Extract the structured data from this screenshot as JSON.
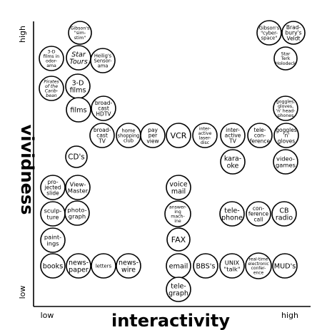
{
  "axes": {
    "x_title": "interactivity",
    "y_title": "vividness",
    "x_low": "low",
    "x_high": "high",
    "y_low": "low",
    "y_high": "high"
  },
  "nodes": [
    {
      "id": "gibsons-sim-stim",
      "lines": [
        "Gibson's",
        "\"sim-",
        "stim\""
      ]
    },
    {
      "id": "3d-films-in-odorama",
      "lines": [
        "3-D",
        "films in",
        "odor-",
        "ama"
      ]
    },
    {
      "id": "star-tours",
      "lines": [
        "Star",
        "Tours"
      ],
      "italic": true
    },
    {
      "id": "heiligs-sensorama",
      "lines": [
        "Heilig's",
        "Sensor-",
        "ama"
      ]
    },
    {
      "id": "pirates-of-the-caribbean",
      "lines": [
        "Pirates",
        "of the",
        "Carib-",
        "bean"
      ],
      "italic": true
    },
    {
      "id": "3d-films",
      "lines": [
        "3-D",
        "films"
      ]
    },
    {
      "id": "films",
      "lines": [
        "films"
      ]
    },
    {
      "id": "broadcast-hdtv",
      "lines": [
        "broad-",
        "cast",
        "HDTV"
      ]
    },
    {
      "id": "broadcast-tv",
      "lines": [
        "broad-",
        "cast",
        "TV"
      ]
    },
    {
      "id": "home-shopping-club",
      "lines": [
        "home",
        "shopping",
        "club"
      ]
    },
    {
      "id": "pay-per-view",
      "lines": [
        "pay",
        "per",
        "view"
      ]
    },
    {
      "id": "vcr",
      "lines": [
        "VCR"
      ]
    },
    {
      "id": "interactive-laser-disc",
      "lines": [
        "inter-",
        "active",
        "laser-",
        "disc"
      ]
    },
    {
      "id": "interactive-tv",
      "lines": [
        "inter-",
        "active",
        "TV"
      ]
    },
    {
      "id": "teleconference",
      "lines": [
        "tele-",
        "con-",
        "ference"
      ]
    },
    {
      "id": "goggles-gloves-2",
      "lines": [
        "goggles",
        "'n'",
        "gloves"
      ]
    },
    {
      "id": "goggles-gloves-headphones",
      "lines": [
        "goggles,",
        "gloves,",
        "'n' head-",
        "phones"
      ]
    },
    {
      "id": "gibsons-cyberspace",
      "lines": [
        "Gibson's",
        "\"cyber-",
        "space\""
      ]
    },
    {
      "id": "bradburys-veldt",
      "lines": [
        "Brad-",
        "bury's",
        "Veldt"
      ]
    },
    {
      "id": "star-trek-holodeck",
      "lines": [
        "Star",
        "Terk",
        "Holodeck"
      ]
    },
    {
      "id": "cds",
      "lines": [
        "CD's"
      ]
    },
    {
      "id": "karaoke",
      "lines": [
        "kara-",
        "oke"
      ]
    },
    {
      "id": "videogames",
      "lines": [
        "video-",
        "games"
      ]
    },
    {
      "id": "projected-slide",
      "lines": [
        "pro-",
        "jected",
        "slide"
      ]
    },
    {
      "id": "view-master",
      "lines": [
        "View-",
        "Master"
      ]
    },
    {
      "id": "voice-mail",
      "lines": [
        "voice",
        "mail"
      ]
    },
    {
      "id": "sculpture",
      "lines": [
        "sculp-",
        "ture"
      ]
    },
    {
      "id": "photograph",
      "lines": [
        "photo-",
        "graph"
      ]
    },
    {
      "id": "answering-machine",
      "lines": [
        "answer-",
        "ing",
        "mach-",
        "ine"
      ]
    },
    {
      "id": "telephone",
      "lines": [
        "tele-",
        "phone"
      ]
    },
    {
      "id": "conference-call",
      "lines": [
        "con-",
        "ference",
        "call"
      ]
    },
    {
      "id": "cb-radio",
      "lines": [
        "CB",
        "radio"
      ]
    },
    {
      "id": "paintings",
      "lines": [
        "paint-",
        "ings"
      ]
    },
    {
      "id": "fax",
      "lines": [
        "FAX"
      ]
    },
    {
      "id": "books",
      "lines": [
        "books"
      ]
    },
    {
      "id": "newspaper",
      "lines": [
        "news-",
        "paper"
      ]
    },
    {
      "id": "letters",
      "lines": [
        "letters"
      ]
    },
    {
      "id": "newswire",
      "lines": [
        "news-",
        "wire"
      ]
    },
    {
      "id": "email",
      "lines": [
        "email"
      ]
    },
    {
      "id": "bbss",
      "lines": [
        "BBS's"
      ]
    },
    {
      "id": "unix-talk",
      "lines": [
        "UNIX",
        "\"talk\""
      ]
    },
    {
      "id": "realtime-electronic-conference",
      "lines": [
        "real-time",
        "electronic",
        "confer-",
        "ence"
      ]
    },
    {
      "id": "muds",
      "lines": [
        "MUD's"
      ]
    },
    {
      "id": "telegraph",
      "lines": [
        "tele-",
        "graph"
      ]
    }
  ]
}
